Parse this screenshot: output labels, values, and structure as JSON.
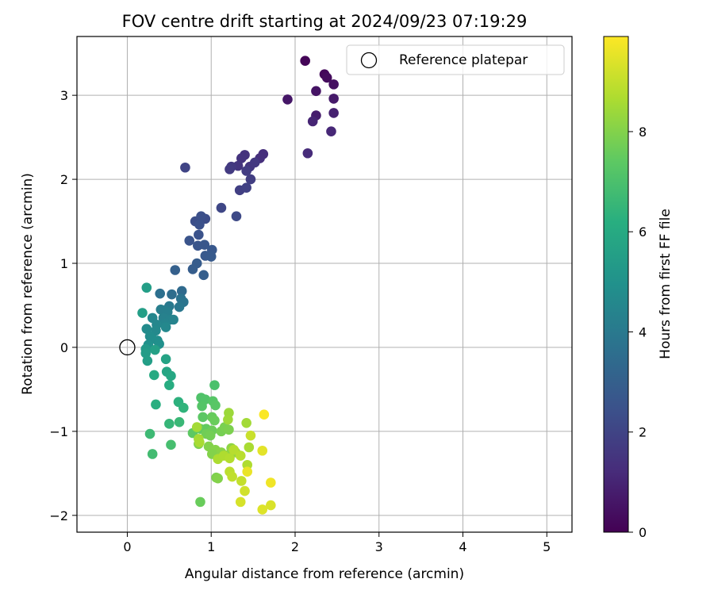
{
  "chart_data": {
    "type": "scatter",
    "title": "FOV centre drift starting at 2024/09/23 07:19:29",
    "xlabel": "Angular distance from reference (arcmin)",
    "ylabel": "Rotation from reference (arcmin)",
    "xlim": [
      -0.6,
      5.3
    ],
    "ylim": [
      -2.2,
      3.7
    ],
    "xticks": [
      0,
      1,
      2,
      3,
      4,
      5
    ],
    "yticks": [
      -2,
      -1,
      0,
      1,
      2,
      3
    ],
    "grid": true,
    "legend": {
      "placement": "top-right",
      "entries": [
        "Reference platepar"
      ]
    },
    "colormap": "viridis",
    "colorbar": {
      "label": "Hours from first FF file",
      "range": [
        0,
        9.9
      ],
      "ticks": [
        0,
        2,
        4,
        6,
        8
      ]
    },
    "reference_point": {
      "name": "Reference platepar",
      "x": 0,
      "y": 0,
      "marker": "open-circle"
    },
    "series": [
      {
        "points": [
          [
            2.12,
            3.41,
            0.1
          ],
          [
            2.35,
            3.25,
            0.2
          ],
          [
            2.38,
            3.21,
            0.3
          ],
          [
            2.46,
            3.13,
            0.4
          ],
          [
            2.25,
            3.05,
            0.5
          ],
          [
            1.91,
            2.95,
            0.6
          ],
          [
            2.46,
            2.96,
            0.7
          ],
          [
            2.25,
            2.76,
            0.8
          ],
          [
            2.46,
            2.79,
            0.9
          ],
          [
            2.21,
            2.69,
            1.0
          ],
          [
            2.43,
            2.57,
            1.1
          ],
          [
            2.15,
            2.31,
            1.2
          ],
          [
            1.62,
            2.3,
            1.3
          ],
          [
            1.58,
            2.25,
            1.35
          ],
          [
            1.4,
            2.29,
            1.4
          ],
          [
            1.36,
            2.25,
            1.45
          ],
          [
            1.32,
            2.16,
            1.5
          ],
          [
            1.46,
            2.15,
            1.55
          ],
          [
            1.52,
            2.2,
            1.6
          ],
          [
            1.24,
            2.15,
            1.65
          ],
          [
            1.22,
            2.12,
            1.7
          ],
          [
            1.42,
            2.1,
            1.75
          ],
          [
            1.47,
            2.0,
            1.8
          ],
          [
            1.34,
            1.87,
            1.85
          ],
          [
            1.42,
            1.9,
            1.9
          ],
          [
            0.69,
            2.14,
            2.0
          ],
          [
            1.12,
            1.66,
            2.1
          ],
          [
            1.3,
            1.56,
            2.2
          ],
          [
            0.93,
            1.53,
            2.3
          ],
          [
            0.81,
            1.5,
            2.35
          ],
          [
            0.88,
            1.56,
            2.4
          ],
          [
            0.86,
            1.46,
            2.45
          ],
          [
            0.85,
            1.34,
            2.5
          ],
          [
            0.74,
            1.27,
            2.55
          ],
          [
            0.84,
            1.21,
            2.6
          ],
          [
            0.92,
            1.22,
            2.65
          ],
          [
            1.01,
            1.16,
            2.7
          ],
          [
            0.93,
            1.09,
            2.75
          ],
          [
            1.0,
            1.08,
            2.8
          ],
          [
            0.83,
            1.0,
            2.85
          ],
          [
            0.78,
            0.93,
            2.9
          ],
          [
            0.91,
            0.86,
            2.95
          ],
          [
            0.57,
            0.92,
            3.0
          ],
          [
            0.65,
            0.67,
            3.4
          ],
          [
            0.53,
            0.63,
            3.5
          ],
          [
            0.39,
            0.64,
            3.6
          ],
          [
            0.64,
            0.58,
            3.7
          ],
          [
            0.67,
            0.54,
            3.8
          ],
          [
            0.62,
            0.48,
            3.9
          ],
          [
            0.5,
            0.49,
            4.0
          ],
          [
            0.45,
            0.44,
            4.1
          ],
          [
            0.4,
            0.45,
            4.2
          ],
          [
            0.48,
            0.42,
            4.25
          ],
          [
            0.43,
            0.35,
            4.3
          ],
          [
            0.51,
            0.33,
            4.35
          ],
          [
            0.55,
            0.33,
            4.4
          ],
          [
            0.45,
            0.28,
            4.45
          ],
          [
            0.3,
            0.35,
            4.5
          ],
          [
            0.35,
            0.27,
            4.55
          ],
          [
            0.46,
            0.24,
            4.6
          ],
          [
            0.34,
            0.2,
            4.65
          ],
          [
            0.23,
            0.22,
            4.7
          ],
          [
            0.27,
            0.13,
            4.75
          ],
          [
            0.3,
            0.1,
            4.8
          ],
          [
            0.36,
            0.08,
            4.85
          ],
          [
            0.38,
            0.04,
            4.9
          ],
          [
            0.25,
            0.03,
            4.95
          ],
          [
            0.23,
            0.71,
            5.5
          ],
          [
            0.18,
            0.41,
            5.5
          ],
          [
            0.22,
            -0.02,
            5.3
          ],
          [
            0.22,
            -0.07,
            5.4
          ],
          [
            0.24,
            -0.16,
            5.5
          ],
          [
            0.33,
            -0.03,
            5.6
          ],
          [
            0.46,
            -0.14,
            5.7
          ],
          [
            0.47,
            -0.29,
            5.8
          ],
          [
            0.52,
            -0.34,
            5.9
          ],
          [
            0.32,
            -0.33,
            6.0
          ],
          [
            0.5,
            -0.45,
            6.1
          ],
          [
            0.34,
            -0.68,
            6.2
          ],
          [
            0.61,
            -0.65,
            6.3
          ],
          [
            0.67,
            -0.72,
            6.4
          ],
          [
            0.5,
            -0.91,
            6.5
          ],
          [
            0.62,
            -0.89,
            6.6
          ],
          [
            0.27,
            -1.03,
            6.7
          ],
          [
            0.3,
            -1.27,
            6.8
          ],
          [
            0.52,
            -1.16,
            6.9
          ],
          [
            1.04,
            -0.45,
            7.0
          ],
          [
            0.88,
            -0.6,
            7.1
          ],
          [
            0.93,
            -0.62,
            7.15
          ],
          [
            0.89,
            -0.7,
            7.2
          ],
          [
            1.02,
            -0.64,
            7.25
          ],
          [
            1.05,
            -0.69,
            7.3
          ],
          [
            0.9,
            -0.83,
            7.35
          ],
          [
            0.78,
            -1.02,
            7.4
          ],
          [
            0.87,
            -0.97,
            7.45
          ],
          [
            0.94,
            -0.97,
            7.5
          ],
          [
            1.01,
            -0.83,
            7.55
          ],
          [
            1.04,
            -0.87,
            7.6
          ],
          [
            1.01,
            -0.99,
            7.65
          ],
          [
            0.94,
            -1.03,
            7.7
          ],
          [
            0.99,
            -1.05,
            7.75
          ],
          [
            1.12,
            -1.0,
            7.8
          ],
          [
            1.16,
            -0.95,
            7.85
          ],
          [
            1.21,
            -0.98,
            7.9
          ],
          [
            0.85,
            -1.15,
            7.95
          ],
          [
            0.97,
            -1.18,
            8.0
          ],
          [
            1.05,
            -1.22,
            8.05
          ],
          [
            1.12,
            -1.25,
            8.1
          ],
          [
            1.21,
            -1.28,
            8.15
          ],
          [
            1.24,
            -1.2,
            8.2
          ],
          [
            1.29,
            -1.25,
            8.25
          ],
          [
            1.06,
            -1.55,
            7.9
          ],
          [
            1.08,
            -1.56,
            8.0
          ],
          [
            1.01,
            -1.27,
            8.0
          ],
          [
            0.87,
            -1.84,
            7.6
          ],
          [
            1.21,
            -0.78,
            8.4
          ],
          [
            1.2,
            -0.86,
            8.45
          ],
          [
            0.83,
            -0.95,
            8.5
          ],
          [
            0.85,
            -1.09,
            8.55
          ],
          [
            0.86,
            -1.13,
            8.6
          ],
          [
            1.08,
            -1.33,
            8.65
          ],
          [
            1.15,
            -1.29,
            8.7
          ],
          [
            1.22,
            -1.32,
            8.75
          ],
          [
            1.27,
            -1.22,
            8.8
          ],
          [
            1.42,
            -0.9,
            8.5
          ],
          [
            1.45,
            -1.19,
            8.6
          ],
          [
            1.35,
            -1.29,
            8.85
          ],
          [
            1.22,
            -1.48,
            8.9
          ],
          [
            1.25,
            -1.54,
            8.95
          ],
          [
            1.43,
            -1.4,
            8.7
          ],
          [
            1.36,
            -1.59,
            9.0
          ],
          [
            1.47,
            -1.05,
            9.1
          ],
          [
            1.4,
            -1.71,
            9.2
          ],
          [
            1.35,
            -1.84,
            9.3
          ],
          [
            1.71,
            -1.88,
            9.35
          ],
          [
            1.61,
            -1.93,
            9.4
          ],
          [
            1.61,
            -1.23,
            9.5
          ],
          [
            1.43,
            -1.48,
            9.6
          ],
          [
            1.71,
            -1.61,
            9.7
          ],
          [
            1.63,
            -0.8,
            9.85
          ]
        ]
      }
    ]
  }
}
